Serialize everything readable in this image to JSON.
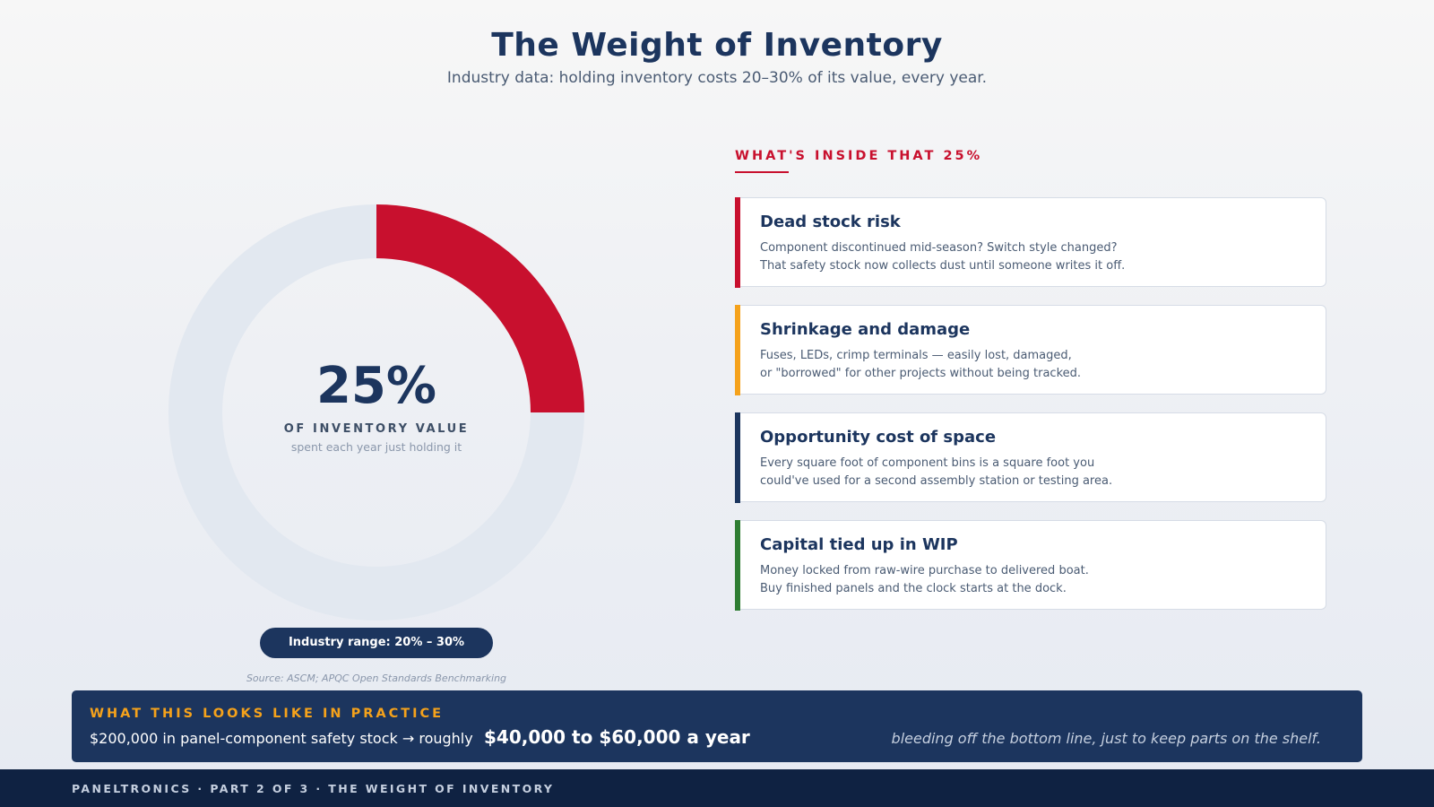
{
  "header": {
    "title": "The Weight of Inventory",
    "subtitle": "Industry data: holding inventory costs 20–30% of its value, every year."
  },
  "chart_data": {
    "type": "pie",
    "variant": "donut",
    "values": [
      25,
      75
    ],
    "categories": [
      "OF INVENTORY VALUE",
      ""
    ],
    "colors": [
      "#c8102e",
      "#e2e8f0"
    ],
    "center_value": "25%",
    "center_label": "OF INVENTORY VALUE",
    "center_sublabel": "spent each year just holding it",
    "range_label": "Industry range: 20% – 30%",
    "source": "Source: ASCM; APQC Open Standards Benchmarking"
  },
  "breakdown": {
    "heading": "WHAT'S INSIDE THAT 25%",
    "cards": [
      {
        "title": "Dead stock risk",
        "text": "Component discontinued mid-season? Switch style changed?\nThat safety stock now collects dust until someone writes it off.",
        "color": "#c8102e"
      },
      {
        "title": "Shrinkage and damage",
        "text": "Fuses, LEDs, crimp terminals — easily lost, damaged,\nor \"borrowed\" for other projects without being tracked.",
        "color": "#f5a21b"
      },
      {
        "title": "Opportunity cost of space",
        "text": "Every square foot of component bins is a square foot you\ncould've used for a second assembly station or testing area.",
        "color": "#1c355e"
      },
      {
        "title": "Capital tied up in WIP",
        "text": "Money locked from raw-wire purchase to delivered boat.\nBuy finished panels and the clock starts at the dock.",
        "color": "#2e7d32"
      }
    ]
  },
  "practice": {
    "label": "WHAT THIS LOOKS LIKE IN PRACTICE",
    "lead": "$200,000 in panel-component safety stock → roughly",
    "amount": "$40,000 to $60,000 a year",
    "tail": "bleeding off the bottom line, just to keep parts on the shelf."
  },
  "footer": {
    "text": "PANELTRONICS · PART 2 OF 3 · THE WEIGHT OF INVENTORY"
  }
}
